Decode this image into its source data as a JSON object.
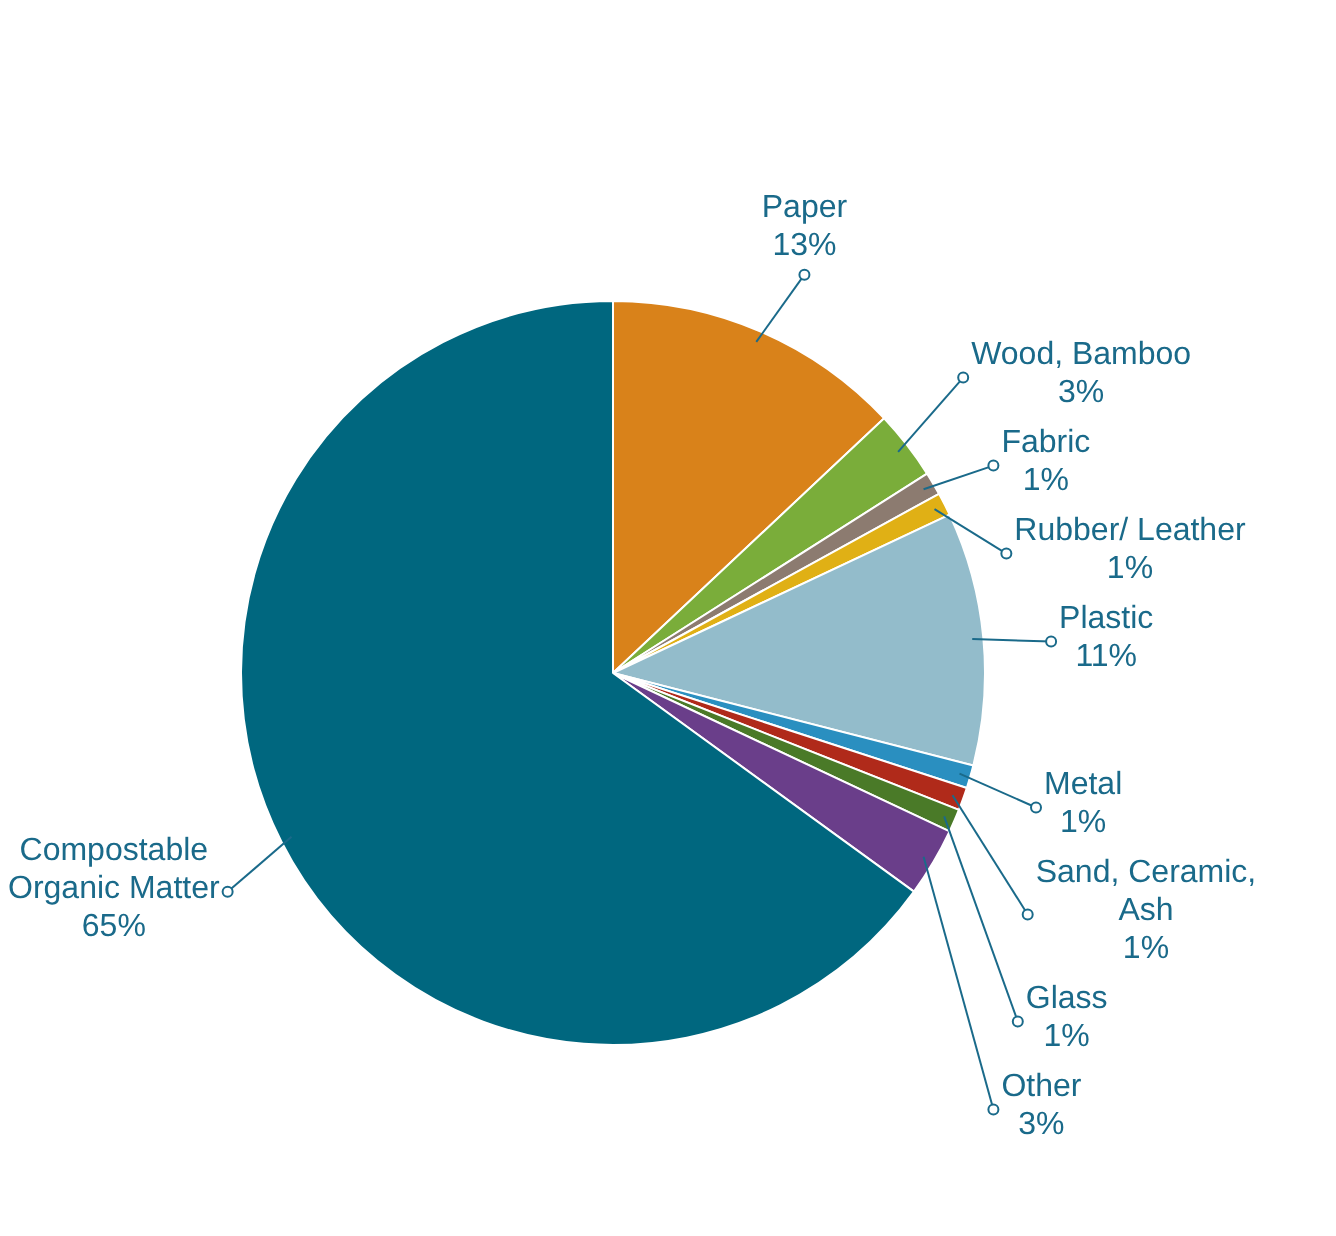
{
  "chart_data": {
    "type": "pie",
    "categories": [
      "Paper",
      "Wood, Bamboo",
      "Fabric",
      "Rubber/ Leather",
      "Plastic",
      "Metal",
      "Sand, Ceramic, Ash",
      "Glass",
      "Other",
      "Compostable Organic Matter"
    ],
    "values": [
      13,
      3,
      1,
      1,
      11,
      1,
      1,
      1,
      3,
      65
    ],
    "value_labels": [
      "13%",
      "3%",
      "1%",
      "1%",
      "11%",
      "1%",
      "1%",
      "1%",
      "3%",
      "65%"
    ],
    "colors": [
      "#d9821a",
      "#7aad3a",
      "#8c7b70",
      "#e0b015",
      "#93bccb",
      "#2a8fc0",
      "#b02a1a",
      "#4a7a28",
      "#6a3e8a",
      "#00677f"
    ],
    "legend": false
  }
}
